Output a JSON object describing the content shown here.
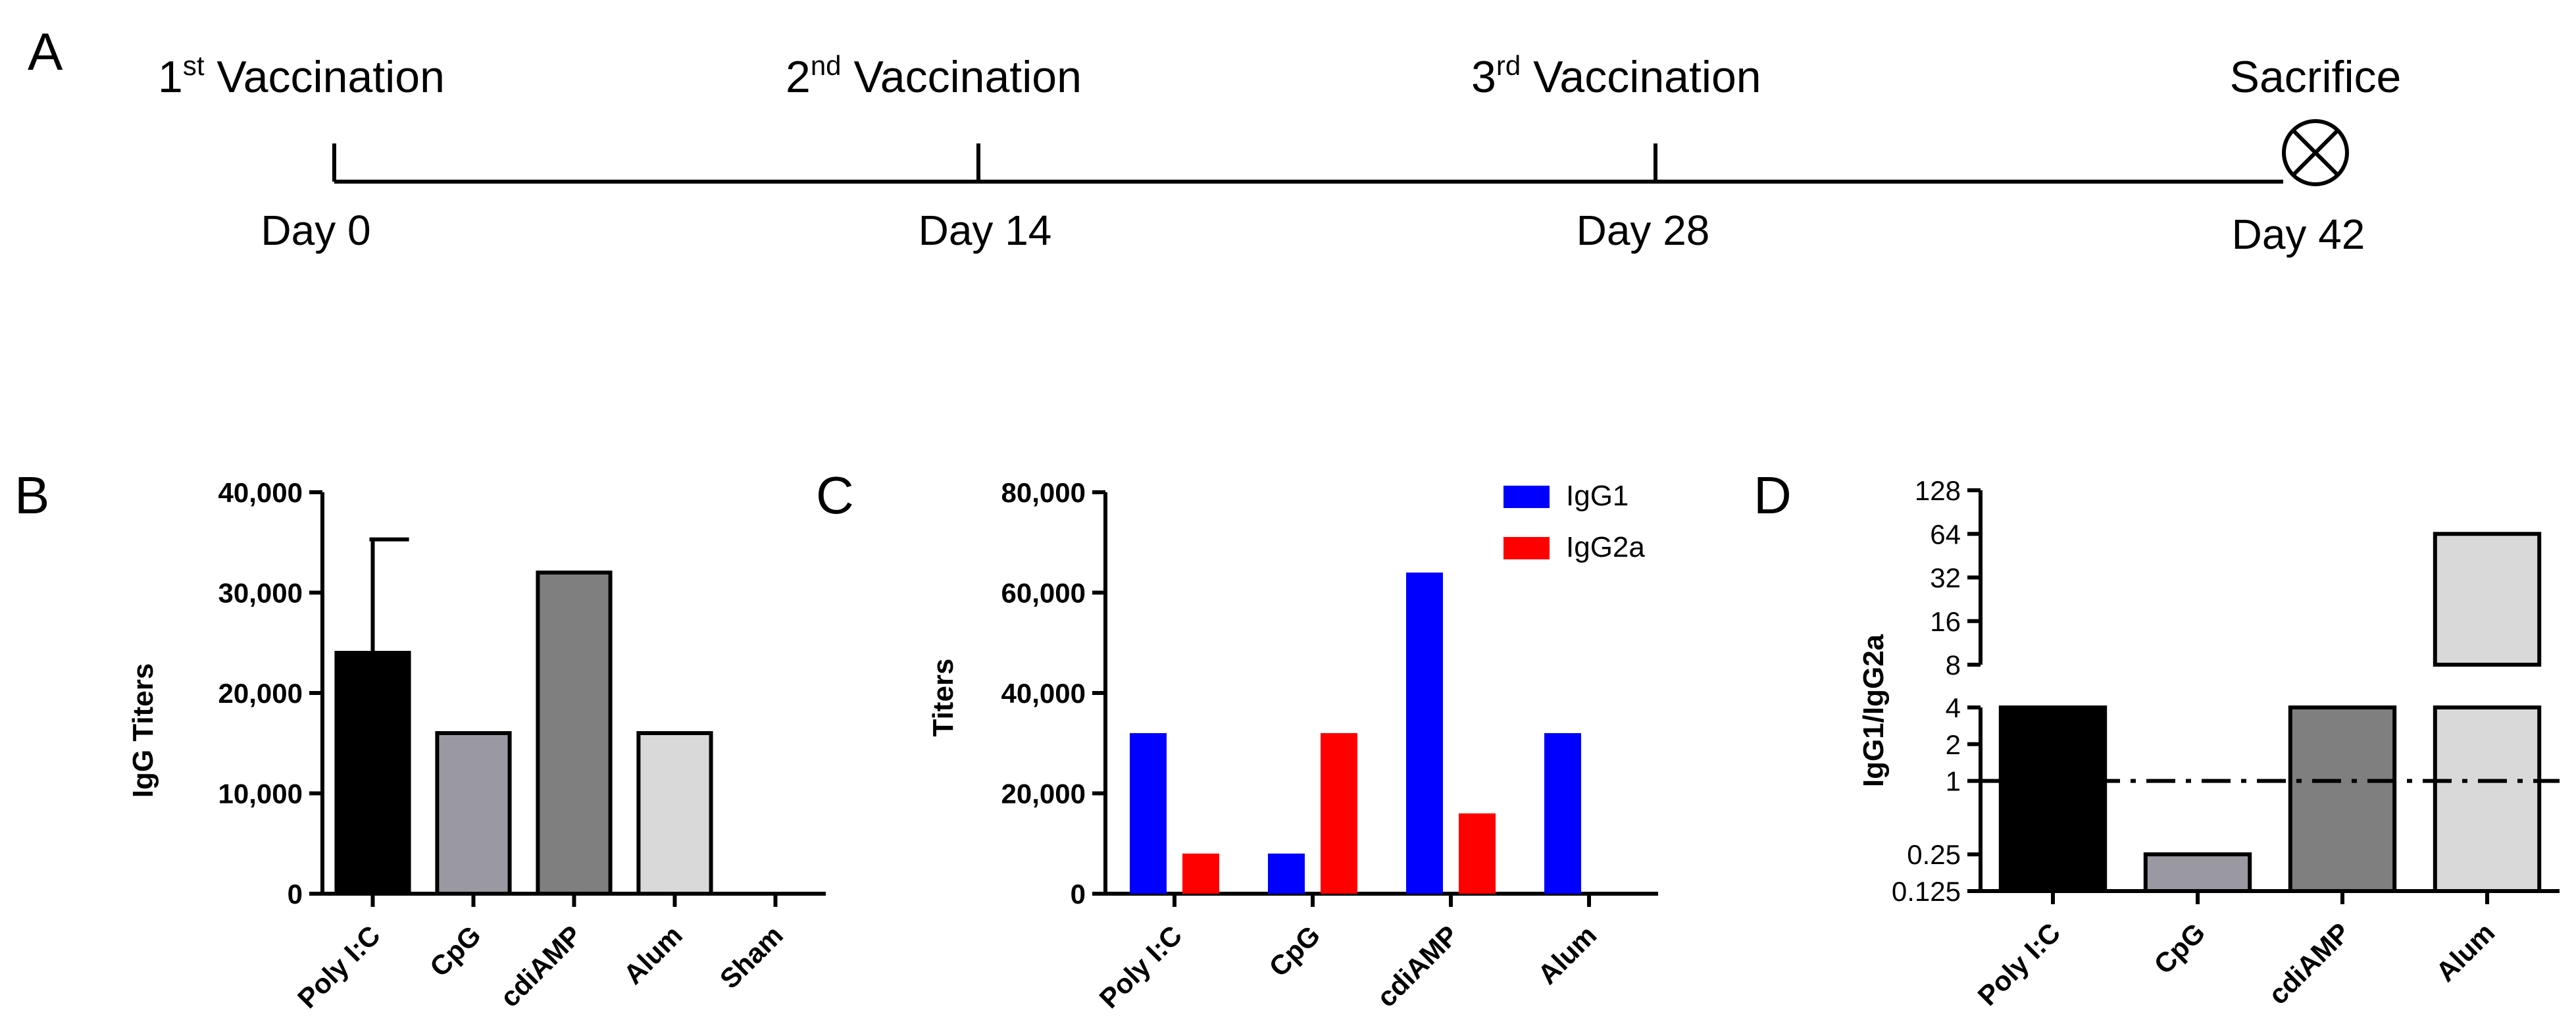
{
  "panels": {
    "A": "A",
    "B": "B",
    "C": "C",
    "D": "D"
  },
  "colors": {
    "black": "#000000",
    "cpg_gray": "#9a99a2",
    "cdiamp_gray": "#7f7f7f",
    "alum_gray": "#d9d9d9",
    "igg1_blue": "#0000ff",
    "igg2a_red": "#ff0000"
  },
  "timeline": {
    "events": [
      {
        "num": "1",
        "sup": "st",
        "label": " Vaccination",
        "day": "Day 0"
      },
      {
        "num": "2",
        "sup": "nd",
        "label": " Vaccination",
        "day": "Day 14"
      },
      {
        "num": "3",
        "sup": "rd",
        "label": " Vaccination",
        "day": "Day 28"
      },
      {
        "num": "",
        "sup": "",
        "label": "Sacrifice",
        "day": "Day 42"
      }
    ],
    "end_marker_icon": "circle-x-icon"
  },
  "chart_data": [
    {
      "panel": "B",
      "type": "bar",
      "title": "",
      "xlabel": "",
      "ylabel": "IgG Titers",
      "ylim": [
        0,
        40000
      ],
      "yticks": [
        0,
        10000,
        20000,
        30000,
        40000
      ],
      "ytick_labels": [
        "0",
        "10,000",
        "20,000",
        "30,000",
        "40,000"
      ],
      "categories": [
        "Poly I:C",
        "CpG",
        "cdiAMP",
        "Alum",
        "Sham"
      ],
      "values": [
        24000,
        16000,
        32000,
        16000,
        0
      ],
      "error_upper": [
        35300,
        null,
        null,
        null,
        null
      ],
      "bar_colors": [
        "#000000",
        "#9a99a2",
        "#7f7f7f",
        "#d9d9d9",
        "#ffffff"
      ]
    },
    {
      "panel": "C",
      "type": "bar",
      "title": "",
      "xlabel": "",
      "ylabel": "Titers",
      "ylim": [
        0,
        80000
      ],
      "yticks": [
        0,
        20000,
        40000,
        60000,
        80000
      ],
      "ytick_labels": [
        "0",
        "20,000",
        "40,000",
        "60,000",
        "80,000"
      ],
      "categories": [
        "Poly I:C",
        "CpG",
        "cdiAMP",
        "Alum"
      ],
      "series": [
        {
          "name": "IgG1",
          "color": "#0000ff",
          "values": [
            32000,
            8000,
            64000,
            32000
          ]
        },
        {
          "name": "IgG2a",
          "color": "#ff0000",
          "values": [
            8000,
            32000,
            16000,
            0
          ]
        }
      ],
      "legend": "top-right"
    },
    {
      "panel": "D",
      "type": "bar",
      "title": "",
      "xlabel": "",
      "ylabel": "IgG1/IgG2a",
      "yscale": "log2",
      "axis_break": [
        4,
        8
      ],
      "ylim": [
        0.125,
        128
      ],
      "yticks": [
        0.125,
        0.25,
        1,
        2,
        4,
        8,
        16,
        32,
        64,
        128
      ],
      "ytick_labels": [
        "0.125",
        "0.25",
        "1",
        "2",
        "4",
        "8",
        "16",
        "32",
        "64",
        "128"
      ],
      "categories": [
        "Poly I:C",
        "CpG",
        "cdiAMP",
        "Alum"
      ],
      "values": [
        4,
        0.25,
        4,
        64
      ],
      "bar_colors": [
        "#000000",
        "#9a99a2",
        "#7f7f7f",
        "#d9d9d9"
      ],
      "reference_line": 1
    }
  ]
}
